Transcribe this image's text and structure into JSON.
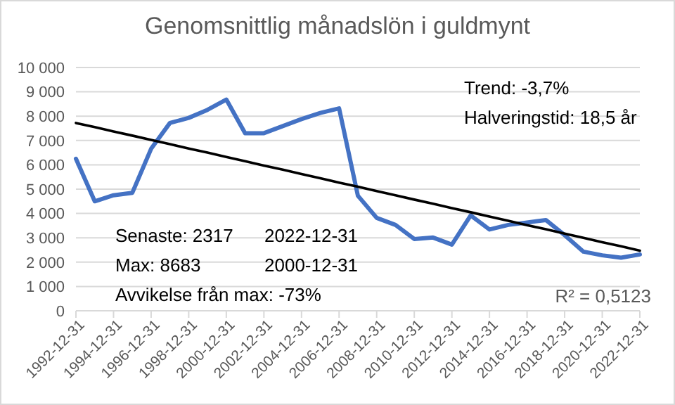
{
  "chart_data": {
    "type": "line",
    "title": "Genomsnittlig månadslön i guldmynt",
    "categories": [
      "1992-12-31",
      null,
      "1994-12-31",
      null,
      "1996-12-31",
      null,
      "1998-12-31",
      null,
      "2000-12-31",
      null,
      "2002-12-31",
      null,
      "2004-12-31",
      null,
      "2006-12-31",
      null,
      "2008-12-31",
      null,
      "2010-12-31",
      null,
      "2012-12-31",
      null,
      "2014-12-31",
      null,
      "2016-12-31",
      null,
      "2018-12-31",
      null,
      "2020-12-31",
      null,
      "2022-12-31"
    ],
    "series": [
      {
        "color": "#4472c4",
        "values": [
          6250,
          4500,
          4750,
          4850,
          6660,
          7720,
          7930,
          8260,
          8683,
          7300,
          7300,
          7590,
          7880,
          8130,
          8320,
          4730,
          3820,
          3530,
          2950,
          3010,
          2720,
          3920,
          3340,
          3530,
          3630,
          3730,
          3110,
          2430,
          2280,
          2180,
          2317
        ]
      },
      {
        "type": "line",
        "color": "#000000",
        "values": [
          7720,
          7550,
          7370,
          7200,
          7020,
          6850,
          6670,
          6500,
          6320,
          6150,
          5970,
          5800,
          5620,
          5450,
          5270,
          5100,
          4920,
          4750,
          4570,
          4400,
          4220,
          4050,
          3870,
          3700,
          3520,
          3350,
          3170,
          3000,
          2820,
          2650,
          2470
        ]
      }
    ],
    "ylim": [
      0,
      10000
    ],
    "yticks": [
      {
        "value": 0,
        "label": "0"
      },
      {
        "value": 1000,
        "label": "1 000"
      },
      {
        "value": 2000,
        "label": "2 000"
      },
      {
        "value": 3000,
        "label": "3 000"
      },
      {
        "value": 4000,
        "label": "4 000"
      },
      {
        "value": 5000,
        "label": "5 000"
      },
      {
        "value": 6000,
        "label": "6 000"
      },
      {
        "value": 7000,
        "label": "7 000"
      },
      {
        "value": 8000,
        "label": "8 000"
      },
      {
        "value": 9000,
        "label": "9 000"
      },
      {
        "value": 10000,
        "label": "10 000"
      }
    ],
    "grid": "y",
    "annotations": [
      "Trend: -3,7%",
      "Halveringstid: 18,5 år",
      "Senaste: 2317",
      "2022-12-31",
      "Max: 8683",
      "2000-12-31",
      "Avvikelse från max: -73%",
      "R² = 0,5123"
    ]
  }
}
